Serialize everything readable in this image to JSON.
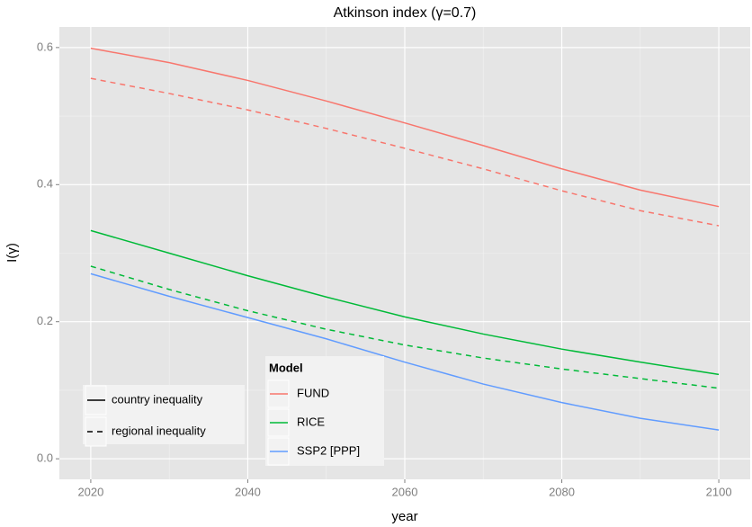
{
  "chart_data": {
    "type": "line",
    "title": "Atkinson index (γ=0.7)",
    "x_label": "year",
    "y_label": "I(γ)",
    "x": [
      2020,
      2030,
      2040,
      2050,
      2060,
      2070,
      2080,
      2090,
      2100
    ],
    "xlim": [
      2016,
      2104
    ],
    "xticks": [
      2020,
      2040,
      2060,
      2080,
      2100
    ],
    "ylim": [
      -0.03,
      0.63
    ],
    "yticks": [
      {
        "value": 0,
        "label": "0.0"
      },
      0.2,
      0.4,
      0.6
    ],
    "grid": true,
    "series": [
      {
        "color": "#F8766D",
        "dash": "solid",
        "values": [
          0.599,
          0.578,
          0.552,
          0.522,
          0.49,
          0.457,
          0.423,
          0.392,
          0.368
        ]
      },
      {
        "color": "#F8766D",
        "dash": "dashed",
        "values": [
          0.555,
          0.533,
          0.509,
          0.482,
          0.453,
          0.423,
          0.391,
          0.362,
          0.34
        ]
      },
      {
        "color": "#00BA38",
        "dash": "solid",
        "values": [
          0.333,
          0.3,
          0.267,
          0.236,
          0.207,
          0.182,
          0.16,
          0.141,
          0.123
        ]
      },
      {
        "color": "#00BA38",
        "dash": "dashed",
        "values": [
          0.281,
          0.247,
          0.216,
          0.189,
          0.166,
          0.147,
          0.131,
          0.117,
          0.103
        ]
      },
      {
        "color": "#619CFF",
        "dash": "solid",
        "values": [
          0.27,
          0.237,
          0.206,
          0.175,
          0.141,
          0.109,
          0.082,
          0.059,
          0.042
        ]
      }
    ],
    "linetype_legend": [
      {
        "name": "country inequality",
        "dash": "solid"
      },
      {
        "name": "regional inequality",
        "dash": "dashed"
      }
    ],
    "color_legend": {
      "title": "Model",
      "items": [
        {
          "name": "FUND",
          "color": "#F8766D"
        },
        {
          "name": "RICE",
          "color": "#00BA38"
        },
        {
          "name": "SSP2 [PPP]",
          "color": "#619CFF"
        }
      ]
    }
  }
}
